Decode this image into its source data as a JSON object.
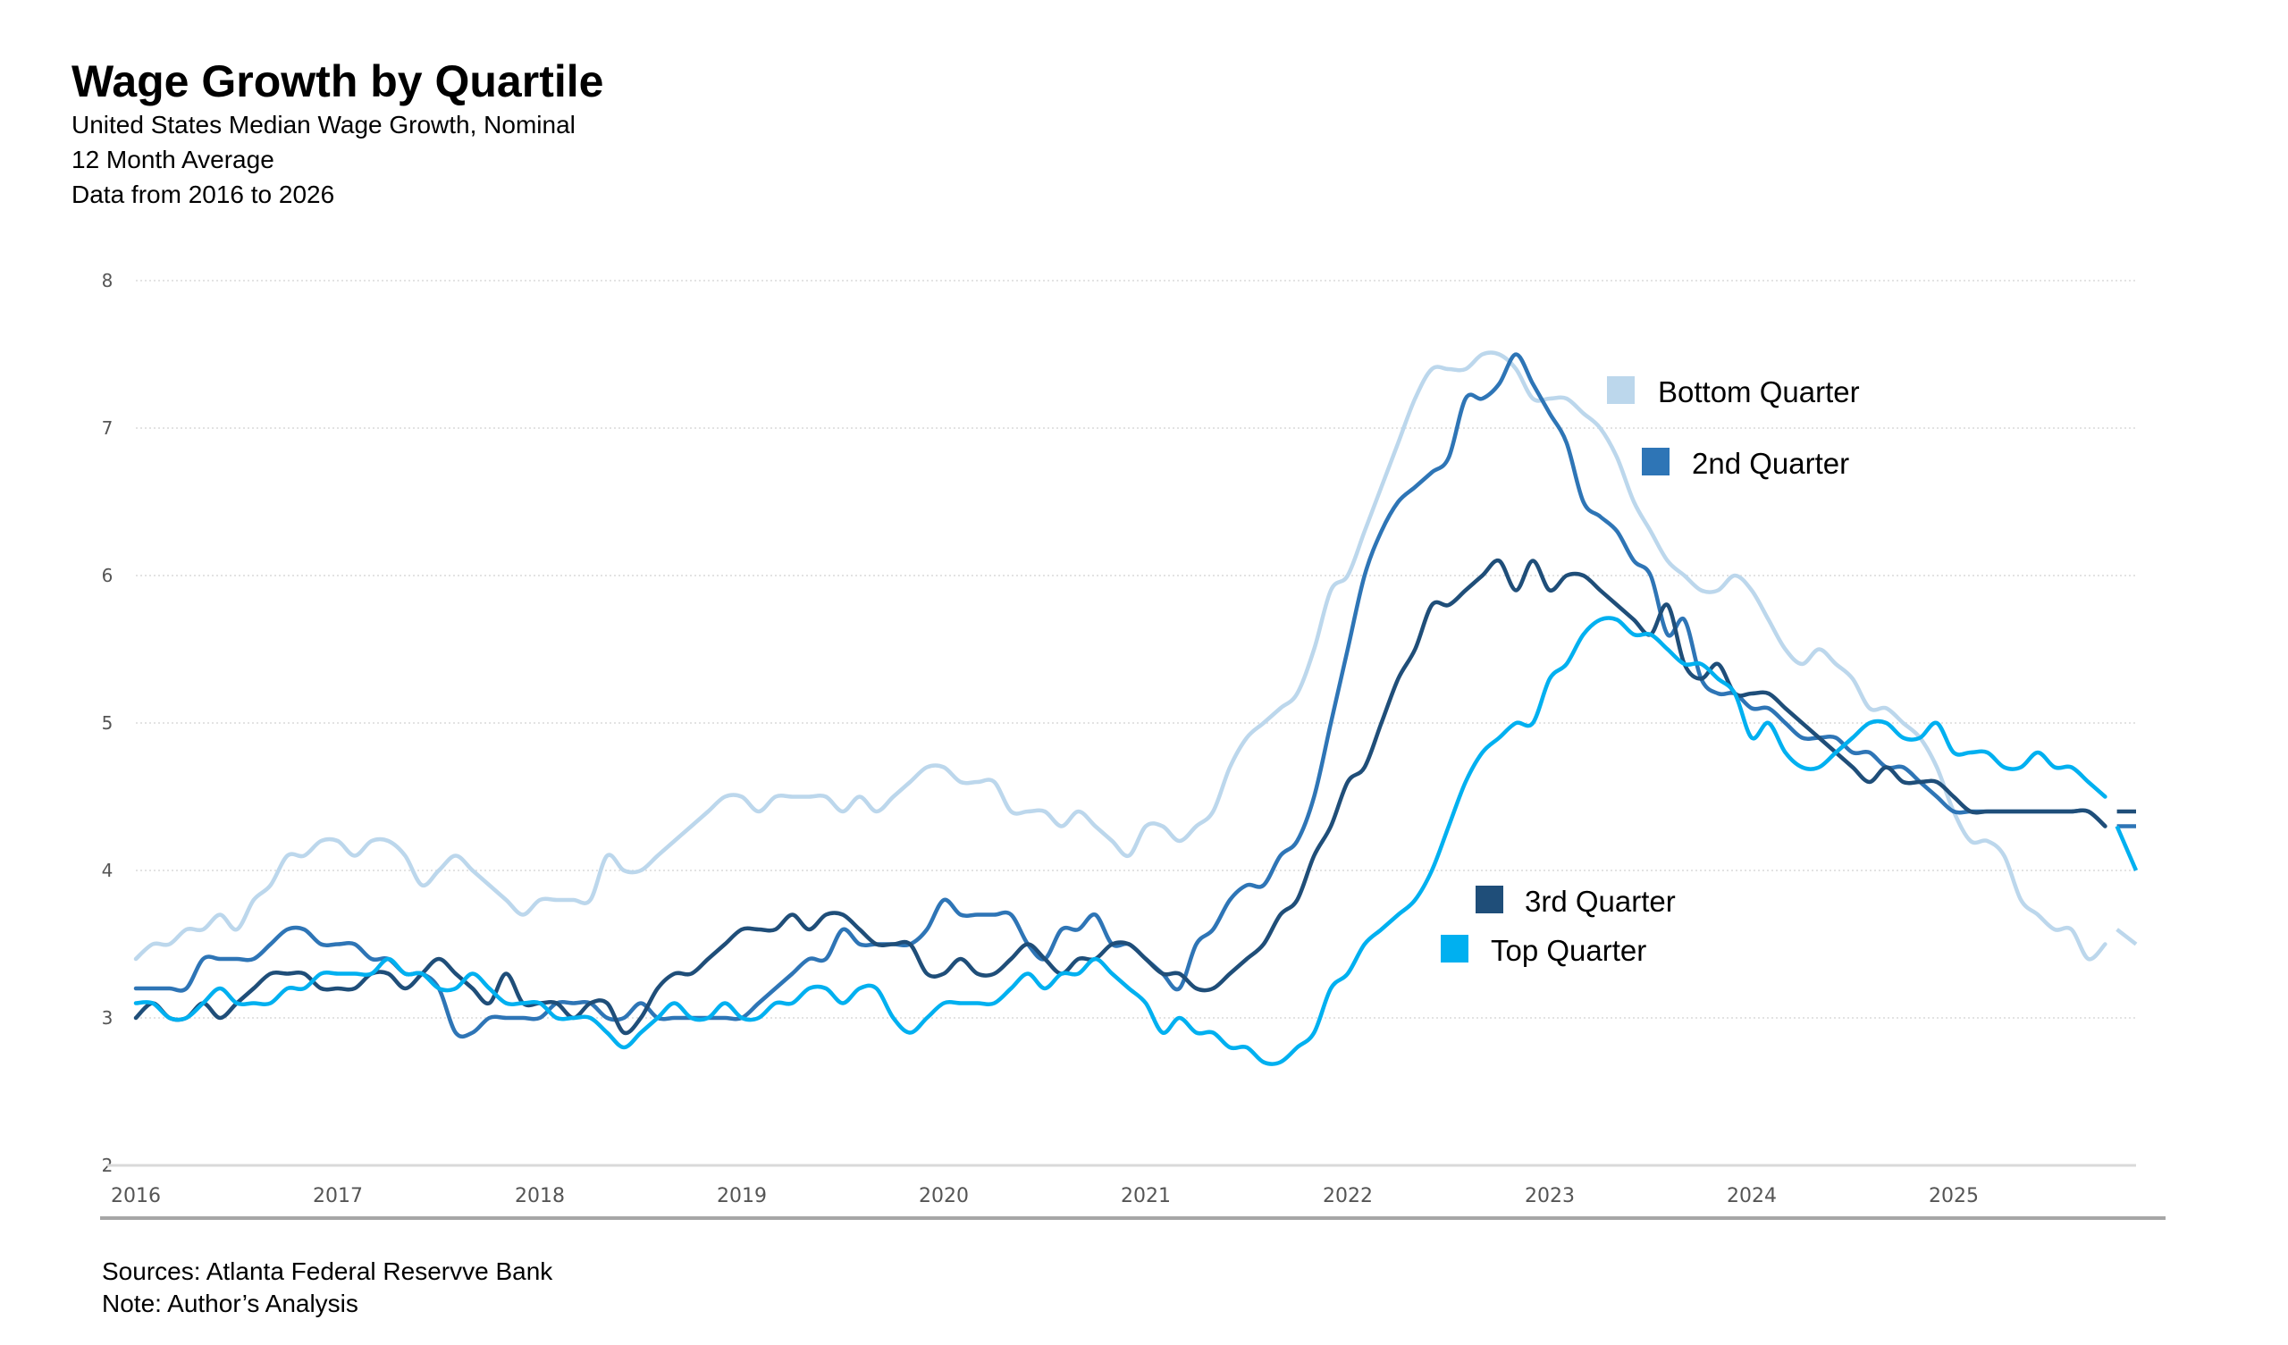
{
  "header": {
    "title": "Wage Growth by Quartile",
    "subtitle_lines": [
      "United States Median Wage Growth, Nominal",
      "12 Month Average",
      "Data from 2016 to 2026"
    ]
  },
  "footer": {
    "sources": "Sources:  Atlanta Federal Reservve Bank",
    "note": "Note: Author’s Analysis"
  },
  "chart_data": {
    "type": "line",
    "title": "Wage Growth by Quartile",
    "xlabel": "",
    "ylabel": "",
    "x_start": 2016.0,
    "x_step": 0.08333,
    "xlim": [
      2016,
      2025.9
    ],
    "ylim": [
      2,
      8
    ],
    "yticks": [
      "2",
      "3",
      "4",
      "5",
      "6",
      "7",
      "8"
    ],
    "xticks": [
      "2016",
      "2017",
      "2018",
      "2019",
      "2020",
      "2021",
      "2022",
      "2023",
      "2024",
      "2025"
    ],
    "grid": true,
    "legend_placement": "inline-annotations",
    "series": [
      {
        "name": "Bottom Quarter",
        "color": "#bcd7ec",
        "values": [
          3.4,
          3.5,
          3.5,
          3.6,
          3.6,
          3.7,
          3.6,
          3.8,
          3.9,
          4.1,
          4.1,
          4.2,
          4.2,
          4.1,
          4.2,
          4.2,
          4.1,
          3.9,
          4.0,
          4.1,
          4.0,
          3.9,
          3.8,
          3.7,
          3.8,
          3.8,
          3.8,
          3.8,
          4.1,
          4.0,
          4.0,
          4.1,
          4.2,
          4.3,
          4.4,
          4.5,
          4.5,
          4.4,
          4.5,
          4.5,
          4.5,
          4.5,
          4.4,
          4.5,
          4.4,
          4.5,
          4.6,
          4.7,
          4.7,
          4.6,
          4.6,
          4.6,
          4.4,
          4.4,
          4.4,
          4.3,
          4.4,
          4.3,
          4.2,
          4.1,
          4.3,
          4.3,
          4.2,
          4.3,
          4.4,
          4.7,
          4.9,
          5.0,
          5.1,
          5.2,
          5.5,
          5.9,
          6.0,
          6.3,
          6.6,
          6.9,
          7.2,
          7.4,
          7.4,
          7.4,
          7.5,
          7.5,
          7.4,
          7.2,
          7.2,
          7.2,
          7.1,
          7.0,
          6.8,
          6.5,
          6.3,
          6.1,
          6.0,
          5.9,
          5.9,
          6.0,
          5.9,
          5.7,
          5.5,
          5.4,
          5.5,
          5.4,
          5.3,
          5.1,
          5.1,
          5.0,
          4.9,
          4.7,
          4.4,
          4.2,
          4.2,
          4.1,
          3.8,
          3.7,
          3.6,
          3.6,
          3.4,
          3.5
        ],
        "tail": {
          "x": [
            2025.83,
            2025.92
          ],
          "values": [
            3.6,
            3.5
          ]
        }
      },
      {
        "name": "2nd Quarter",
        "color": "#2e75b6",
        "values": [
          3.2,
          3.2,
          3.2,
          3.2,
          3.4,
          3.4,
          3.4,
          3.4,
          3.5,
          3.6,
          3.6,
          3.5,
          3.5,
          3.5,
          3.4,
          3.4,
          3.3,
          3.3,
          3.2,
          2.9,
          2.9,
          3.0,
          3.0,
          3.0,
          3.0,
          3.1,
          3.1,
          3.1,
          3.0,
          3.0,
          3.1,
          3.0,
          3.0,
          3.0,
          3.0,
          3.0,
          3.0,
          3.1,
          3.2,
          3.3,
          3.4,
          3.4,
          3.6,
          3.5,
          3.5,
          3.5,
          3.5,
          3.6,
          3.8,
          3.7,
          3.7,
          3.7,
          3.7,
          3.5,
          3.4,
          3.6,
          3.6,
          3.7,
          3.5,
          3.5,
          3.4,
          3.3,
          3.2,
          3.5,
          3.6,
          3.8,
          3.9,
          3.9,
          4.1,
          4.2,
          4.5,
          5.0,
          5.5,
          6.0,
          6.3,
          6.5,
          6.6,
          6.7,
          6.8,
          7.2,
          7.2,
          7.3,
          7.5,
          7.3,
          7.1,
          6.9,
          6.5,
          6.4,
          6.3,
          6.1,
          6.0,
          5.6,
          5.7,
          5.3,
          5.2,
          5.2,
          5.1,
          5.1,
          5.0,
          4.9,
          4.9,
          4.9,
          4.8,
          4.8,
          4.7,
          4.7,
          4.6,
          4.5,
          4.4,
          4.4,
          4.4,
          4.4,
          4.4,
          4.4,
          4.4,
          4.4,
          4.4,
          4.3
        ],
        "tail": {
          "x": [
            2025.83,
            2025.92
          ],
          "values": [
            4.3,
            4.3
          ]
        }
      },
      {
        "name": "3rd Quarter",
        "color": "#1f4e79",
        "values": [
          3.0,
          3.1,
          3.0,
          3.0,
          3.1,
          3.0,
          3.1,
          3.2,
          3.3,
          3.3,
          3.3,
          3.2,
          3.2,
          3.2,
          3.3,
          3.3,
          3.2,
          3.3,
          3.4,
          3.3,
          3.2,
          3.1,
          3.3,
          3.1,
          3.1,
          3.1,
          3.0,
          3.1,
          3.1,
          2.9,
          3.0,
          3.2,
          3.3,
          3.3,
          3.4,
          3.5,
          3.6,
          3.6,
          3.6,
          3.7,
          3.6,
          3.7,
          3.7,
          3.6,
          3.5,
          3.5,
          3.5,
          3.3,
          3.3,
          3.4,
          3.3,
          3.3,
          3.4,
          3.5,
          3.4,
          3.3,
          3.4,
          3.4,
          3.5,
          3.5,
          3.4,
          3.3,
          3.3,
          3.2,
          3.2,
          3.3,
          3.4,
          3.5,
          3.7,
          3.8,
          4.1,
          4.3,
          4.6,
          4.7,
          5.0,
          5.3,
          5.5,
          5.8,
          5.8,
          5.9,
          6.0,
          6.1,
          5.9,
          6.1,
          5.9,
          6.0,
          6.0,
          5.9,
          5.8,
          5.7,
          5.6,
          5.8,
          5.4,
          5.3,
          5.4,
          5.2,
          5.2,
          5.2,
          5.1,
          5.0,
          4.9,
          4.8,
          4.7,
          4.6,
          4.7,
          4.6,
          4.6,
          4.6,
          4.5,
          4.4,
          4.4,
          4.4,
          4.4,
          4.4,
          4.4,
          4.4,
          4.4,
          4.3
        ],
        "tail": {
          "x": [
            2025.83,
            2025.92
          ],
          "values": [
            4.4,
            4.4
          ]
        }
      },
      {
        "name": "Top Quarter",
        "color": "#00b0f0",
        "values": [
          3.1,
          3.1,
          3.0,
          3.0,
          3.1,
          3.2,
          3.1,
          3.1,
          3.1,
          3.2,
          3.2,
          3.3,
          3.3,
          3.3,
          3.3,
          3.4,
          3.3,
          3.3,
          3.2,
          3.2,
          3.3,
          3.2,
          3.1,
          3.1,
          3.1,
          3.0,
          3.0,
          3.0,
          2.9,
          2.8,
          2.9,
          3.0,
          3.1,
          3.0,
          3.0,
          3.1,
          3.0,
          3.0,
          3.1,
          3.1,
          3.2,
          3.2,
          3.1,
          3.2,
          3.2,
          3.0,
          2.9,
          3.0,
          3.1,
          3.1,
          3.1,
          3.1,
          3.2,
          3.3,
          3.2,
          3.3,
          3.3,
          3.4,
          3.3,
          3.2,
          3.1,
          2.9,
          3.0,
          2.9,
          2.9,
          2.8,
          2.8,
          2.7,
          2.7,
          2.8,
          2.9,
          3.2,
          3.3,
          3.5,
          3.6,
          3.7,
          3.8,
          4.0,
          4.3,
          4.6,
          4.8,
          4.9,
          5.0,
          5.0,
          5.3,
          5.4,
          5.6,
          5.7,
          5.7,
          5.6,
          5.6,
          5.5,
          5.4,
          5.4,
          5.3,
          5.2,
          4.9,
          5.0,
          4.8,
          4.7,
          4.7,
          4.8,
          4.9,
          5.0,
          5.0,
          4.9,
          4.9,
          5.0,
          4.8,
          4.8,
          4.8,
          4.7,
          4.7,
          4.8,
          4.7,
          4.7,
          4.6,
          4.5
        ],
        "tail": {
          "x": [
            2025.83,
            2025.92
          ],
          "values": [
            4.3,
            4.0
          ]
        }
      }
    ],
    "legend": [
      {
        "label": "Bottom Quarter",
        "color": "#bcd7ec"
      },
      {
        "label": "2nd Quarter",
        "color": "#2e75b6"
      },
      {
        "label": "3rd Quarter",
        "color": "#1f4e79"
      },
      {
        "label": "Top Quarter",
        "color": "#00b0f0"
      }
    ]
  }
}
